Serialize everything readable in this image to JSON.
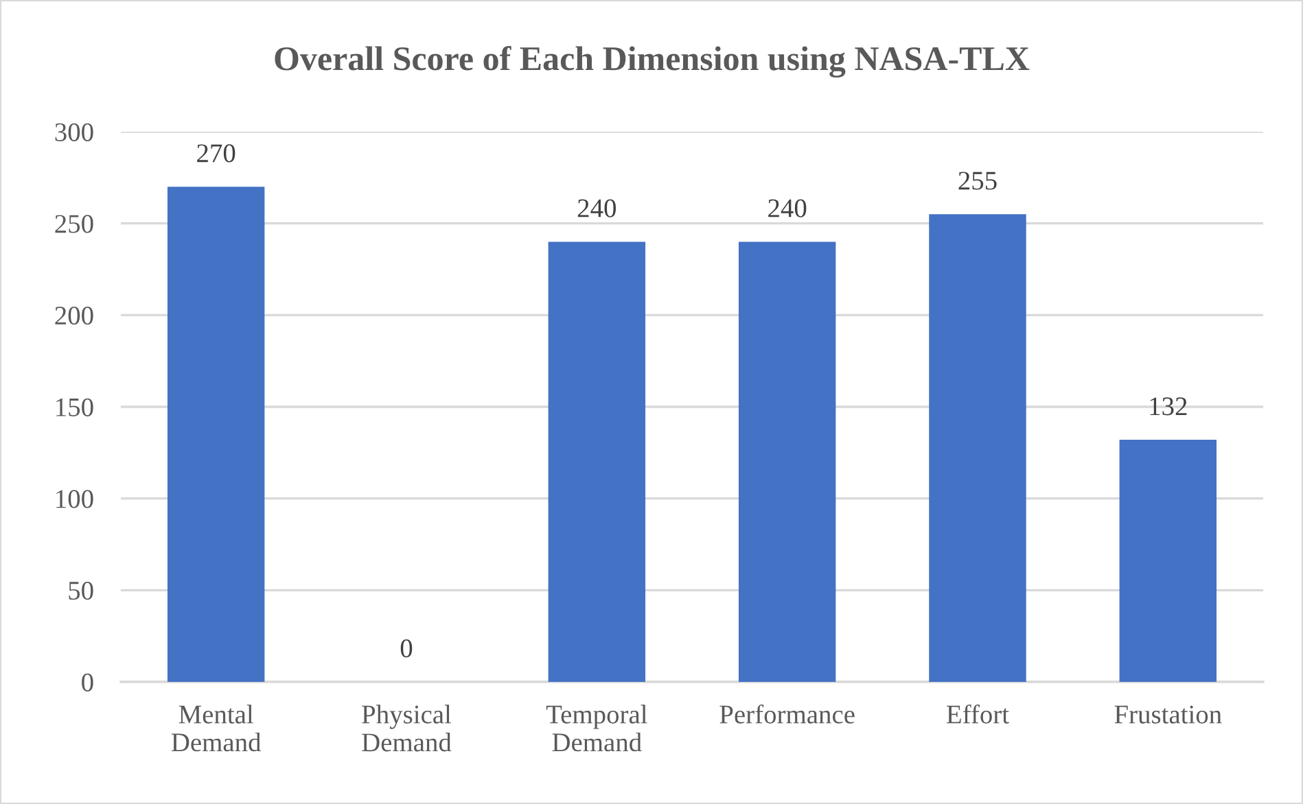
{
  "chart_data": {
    "type": "bar",
    "title": "Overall Score of Each Dimension using NASA-TLX",
    "categories": [
      "Mental\nDemand",
      "Physical\nDemand",
      "Temporal\nDemand",
      "Performance",
      "Effort",
      "Frustation"
    ],
    "values": [
      270,
      0,
      240,
      240,
      255,
      132
    ],
    "color": "#4472c4",
    "ylim": [
      0,
      300
    ],
    "yticks": [
      0,
      50,
      100,
      150,
      200,
      250,
      300
    ],
    "grid": "y",
    "data_labels": true
  }
}
